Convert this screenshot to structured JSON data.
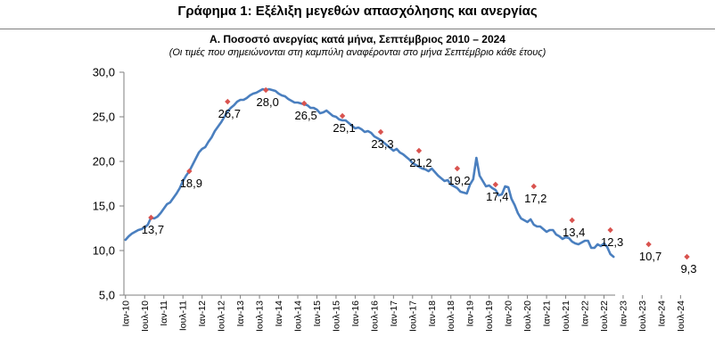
{
  "figure_title": "Γράφημα 1: Εξέλιξη μεγεθών απασχόλησης και ανεργίας",
  "colors": {
    "line": "#4a7fbf",
    "marker": "#d9534f",
    "axis": "#7f7f7f"
  },
  "chart_data": {
    "type": "line",
    "title": "Α. Ποσοστό ανεργίας κατά μήνα, Σεπτέμβριος 2010 – 2024",
    "subtitle": "(Οι τιμές που σημειώνονται στη καμπύλη αναφέρονται στο μήνα Σεπτέμβριο κάθε έτους)",
    "xlabel": "",
    "ylabel": "",
    "ylim": [
      5,
      30
    ],
    "yticks": [
      "5,0",
      "10,0",
      "15,0",
      "20,0",
      "25,0",
      "30,0"
    ],
    "ytick_values": [
      5,
      10,
      15,
      20,
      25,
      30
    ],
    "grid": false,
    "x_tick_labels": [
      "Ιαν-10",
      "Ιουλ-10",
      "Ιαν-11",
      "Ιουλ-11",
      "Ιαν-12",
      "Ιουλ-12",
      "Ιαν-13",
      "Ιουλ-13",
      "Ιαν-14",
      "Ιουλ-14",
      "Ιαν-15",
      "Ιουλ-15",
      "Ιαν-16",
      "Ιουλ-16",
      "Ιαν-17",
      "Ιουλ-17",
      "Ιαν-18",
      "Ιουλ-18",
      "Ιαν-19",
      "Ιουλ-19",
      "Ιαν-20",
      "Ιουλ-20",
      "Ιαν-21",
      "Ιουλ-21",
      "Ιαν-22",
      "Ιουλ-22",
      "Ιαν-23",
      "Ιουλ-23",
      "Ιαν-24",
      "Ιουλ-24"
    ],
    "x_tick_months": [
      0,
      6,
      12,
      18,
      24,
      30,
      36,
      42,
      48,
      54,
      60,
      66,
      72,
      78,
      84,
      90,
      96,
      102,
      108,
      114,
      120,
      126,
      132,
      138,
      144,
      150,
      156,
      162,
      168,
      174
    ],
    "series": [
      {
        "values": [
          11.2,
          11.6,
          11.9,
          12.1,
          12.3,
          12.4,
          12.6,
          12.9,
          13.7,
          13.6,
          13.8,
          14.2,
          14.7,
          15.2,
          15.4,
          15.9,
          16.4,
          17.0,
          17.8,
          18.4,
          18.9,
          19.6,
          20.3,
          21.0,
          21.4,
          21.6,
          22.2,
          22.7,
          23.4,
          23.9,
          24.4,
          25.0,
          25.6,
          26.0,
          26.3,
          26.7,
          26.9,
          26.9,
          27.1,
          27.4,
          27.6,
          27.7,
          27.9,
          28.1,
          28.0,
          28.1,
          28.0,
          27.9,
          27.6,
          27.4,
          27.3,
          27.0,
          26.8,
          26.6,
          26.6,
          26.5,
          26.4,
          26.3,
          26.0,
          26.0,
          25.8,
          25.4,
          25.5,
          25.7,
          25.4,
          25.1,
          25.0,
          24.7,
          24.6,
          24.6,
          24.3,
          24.0,
          23.7,
          23.8,
          23.6,
          23.3,
          23.4,
          23.2,
          22.8,
          22.6,
          22.4,
          22.1,
          21.8,
          21.5,
          21.2,
          21.4,
          21.0,
          20.8,
          20.5,
          20.2,
          19.8,
          19.6,
          19.4,
          19.2,
          19.1,
          18.9,
          19.2,
          18.8,
          18.4,
          18.1,
          17.8,
          17.9,
          17.4,
          17.2,
          17.0,
          16.6,
          16.5,
          16.4,
          17.4,
          18.0,
          20.4,
          18.4,
          17.8,
          17.2,
          17.3,
          17.0,
          16.8,
          16.2,
          16.3,
          17.2,
          17.1,
          15.8,
          15.1,
          14.2,
          13.6,
          13.4,
          13.2,
          13.5,
          12.9,
          12.7,
          12.7,
          12.4,
          12.1,
          12.3,
          12.3,
          11.8,
          11.6,
          11.3,
          11.5,
          11.4,
          11.0,
          10.8,
          10.7,
          10.9,
          11.1,
          11.1,
          10.3,
          10.3,
          10.7,
          10.5,
          10.8,
          10.4,
          9.6,
          9.3
        ]
      }
    ],
    "september_markers": [
      {
        "month_index": 8,
        "value": 13.7,
        "label": "13,7",
        "show_label": true
      },
      {
        "month_index": 20,
        "value": 18.9,
        "label": "18,9",
        "show_label": true
      },
      {
        "month_index": 32,
        "value": 26.7,
        "label": "26,7",
        "show_label": true
      },
      {
        "month_index": 44,
        "value": 28.0,
        "label": "28,0",
        "show_label": true
      },
      {
        "month_index": 56,
        "value": 26.5,
        "label": "26,5",
        "show_label": true
      },
      {
        "month_index": 68,
        "value": 25.1,
        "label": "25,1",
        "show_label": true
      },
      {
        "month_index": 80,
        "value": 23.3,
        "label": "23,3",
        "show_label": true
      },
      {
        "month_index": 92,
        "value": 21.2,
        "label": "21,2",
        "show_label": true
      },
      {
        "month_index": 104,
        "value": 19.2,
        "label": "19,2",
        "show_label": true
      },
      {
        "month_index": 116,
        "value": 17.4,
        "label": "17,4",
        "show_label": true
      },
      {
        "month_index": 128,
        "value": 17.2,
        "label": "17,2",
        "show_label": true
      },
      {
        "month_index": 140,
        "value": 13.4,
        "label": "13,4",
        "show_label": true
      },
      {
        "month_index": 152,
        "value": 12.3,
        "label": "12,3",
        "show_label": true
      },
      {
        "month_index": 164,
        "value": 10.7,
        "label": "10,7",
        "show_label": true
      },
      {
        "month_index": 176,
        "value": 9.3,
        "label": "9,3",
        "show_label": true
      }
    ]
  }
}
